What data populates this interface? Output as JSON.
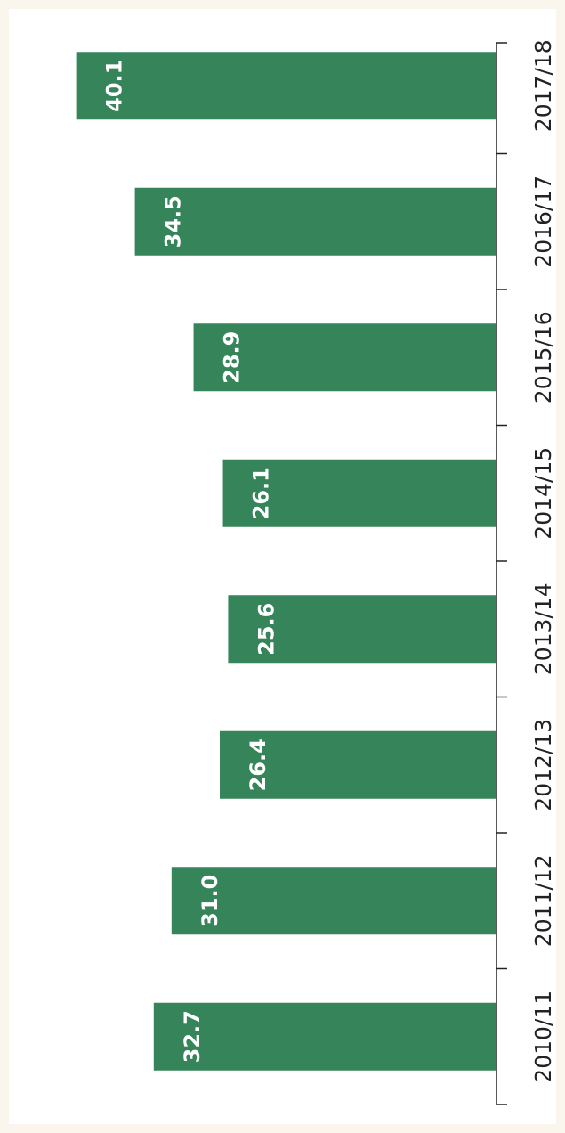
{
  "chart_data": {
    "type": "bar",
    "orientation": "rotated",
    "categories": [
      "2010/11",
      "2011/12",
      "2012/13",
      "2013/14",
      "2014/15",
      "2015/16",
      "2016/17",
      "2017/18"
    ],
    "values": [
      32.7,
      31.0,
      26.4,
      25.6,
      26.1,
      28.9,
      34.5,
      40.1
    ],
    "value_labels": [
      "32.7",
      "31.0",
      "26.4",
      "25.6",
      "26.1",
      "28.9",
      "34.5",
      "40.1"
    ],
    "color": "#35845a"
  }
}
